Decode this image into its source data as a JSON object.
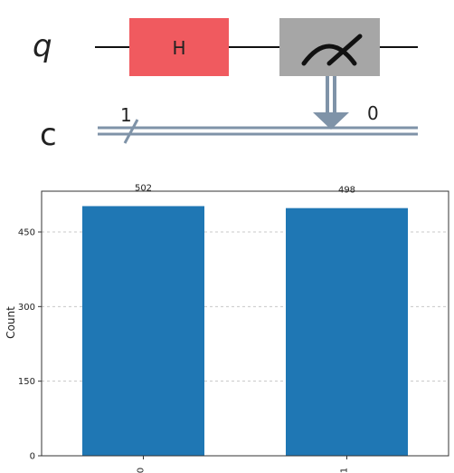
{
  "circuit": {
    "qubit_label": "q",
    "classical_label": "c",
    "gate_label": "H",
    "bus_width": "1",
    "bit_index": "0",
    "colors": {
      "wire": "#111111",
      "gate": "#f05a5f",
      "measure": "#a6a6a6",
      "classical": "#7f93a8"
    },
    "measure_icon": "meter-icon"
  },
  "chart_data": {
    "type": "bar",
    "categories": [
      "0",
      "1"
    ],
    "values": [
      502,
      498
    ],
    "data_labels": [
      "502",
      "498"
    ],
    "title": "",
    "xlabel": "",
    "ylabel": "Count",
    "ylim": [
      0,
      532
    ],
    "yticks": [
      0,
      150,
      300,
      450
    ],
    "ytick_labels": [
      "0",
      "150",
      "300",
      "450"
    ],
    "grid": true,
    "bar_color": "#1f77b4"
  }
}
